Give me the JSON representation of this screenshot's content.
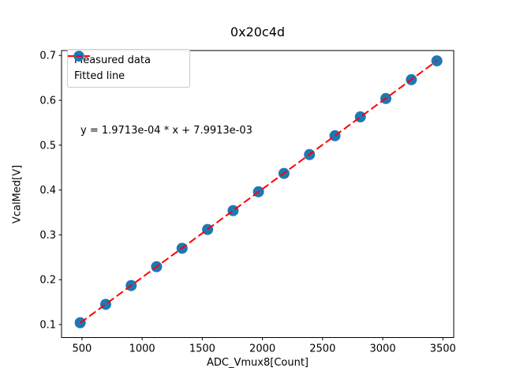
{
  "chart_data": {
    "type": "scatter",
    "title": "0x20c4d",
    "xlabel": "ADC_Vmux8[Count]",
    "ylabel": "VcalMed[V]",
    "x": [
      485,
      697,
      909,
      1120,
      1332,
      1544,
      1756,
      1967,
      2179,
      2391,
      2603,
      2814,
      3026,
      3238,
      3450
    ],
    "series": [
      {
        "name": "Measured data",
        "type": "scatter",
        "color": "#1f77b4",
        "values": [
          0.104,
          0.145,
          0.187,
          0.229,
          0.27,
          0.312,
          0.354,
          0.396,
          0.437,
          0.479,
          0.521,
          0.563,
          0.604,
          0.646,
          0.688
        ]
      },
      {
        "name": "Fitted line",
        "type": "line",
        "style": "dashed",
        "color": "#ff0000",
        "slope": 0.00019713,
        "intercept": 0.0079913
      }
    ],
    "annotation": {
      "text": "y = 1.9713e-04 * x + 7.9913e-03",
      "x": 490,
      "y": 0.527
    },
    "xticks": [
      500,
      1000,
      1500,
      2000,
      2500,
      3000,
      3500
    ],
    "xtick_labels": [
      "500",
      "1000",
      "1500",
      "2000",
      "2500",
      "3000",
      "3500"
    ],
    "yticks": [
      0.1,
      0.2,
      0.3,
      0.4,
      0.5,
      0.6,
      0.7
    ],
    "ytick_labels": [
      "0.1",
      "0.2",
      "0.3",
      "0.4",
      "0.5",
      "0.6",
      "0.7"
    ],
    "xlim": [
      330,
      3590
    ],
    "ylim": [
      0.071,
      0.711
    ],
    "grid": false,
    "legend": {
      "position": "upper left",
      "entries": [
        "Measured data",
        "Fitted line"
      ]
    }
  }
}
